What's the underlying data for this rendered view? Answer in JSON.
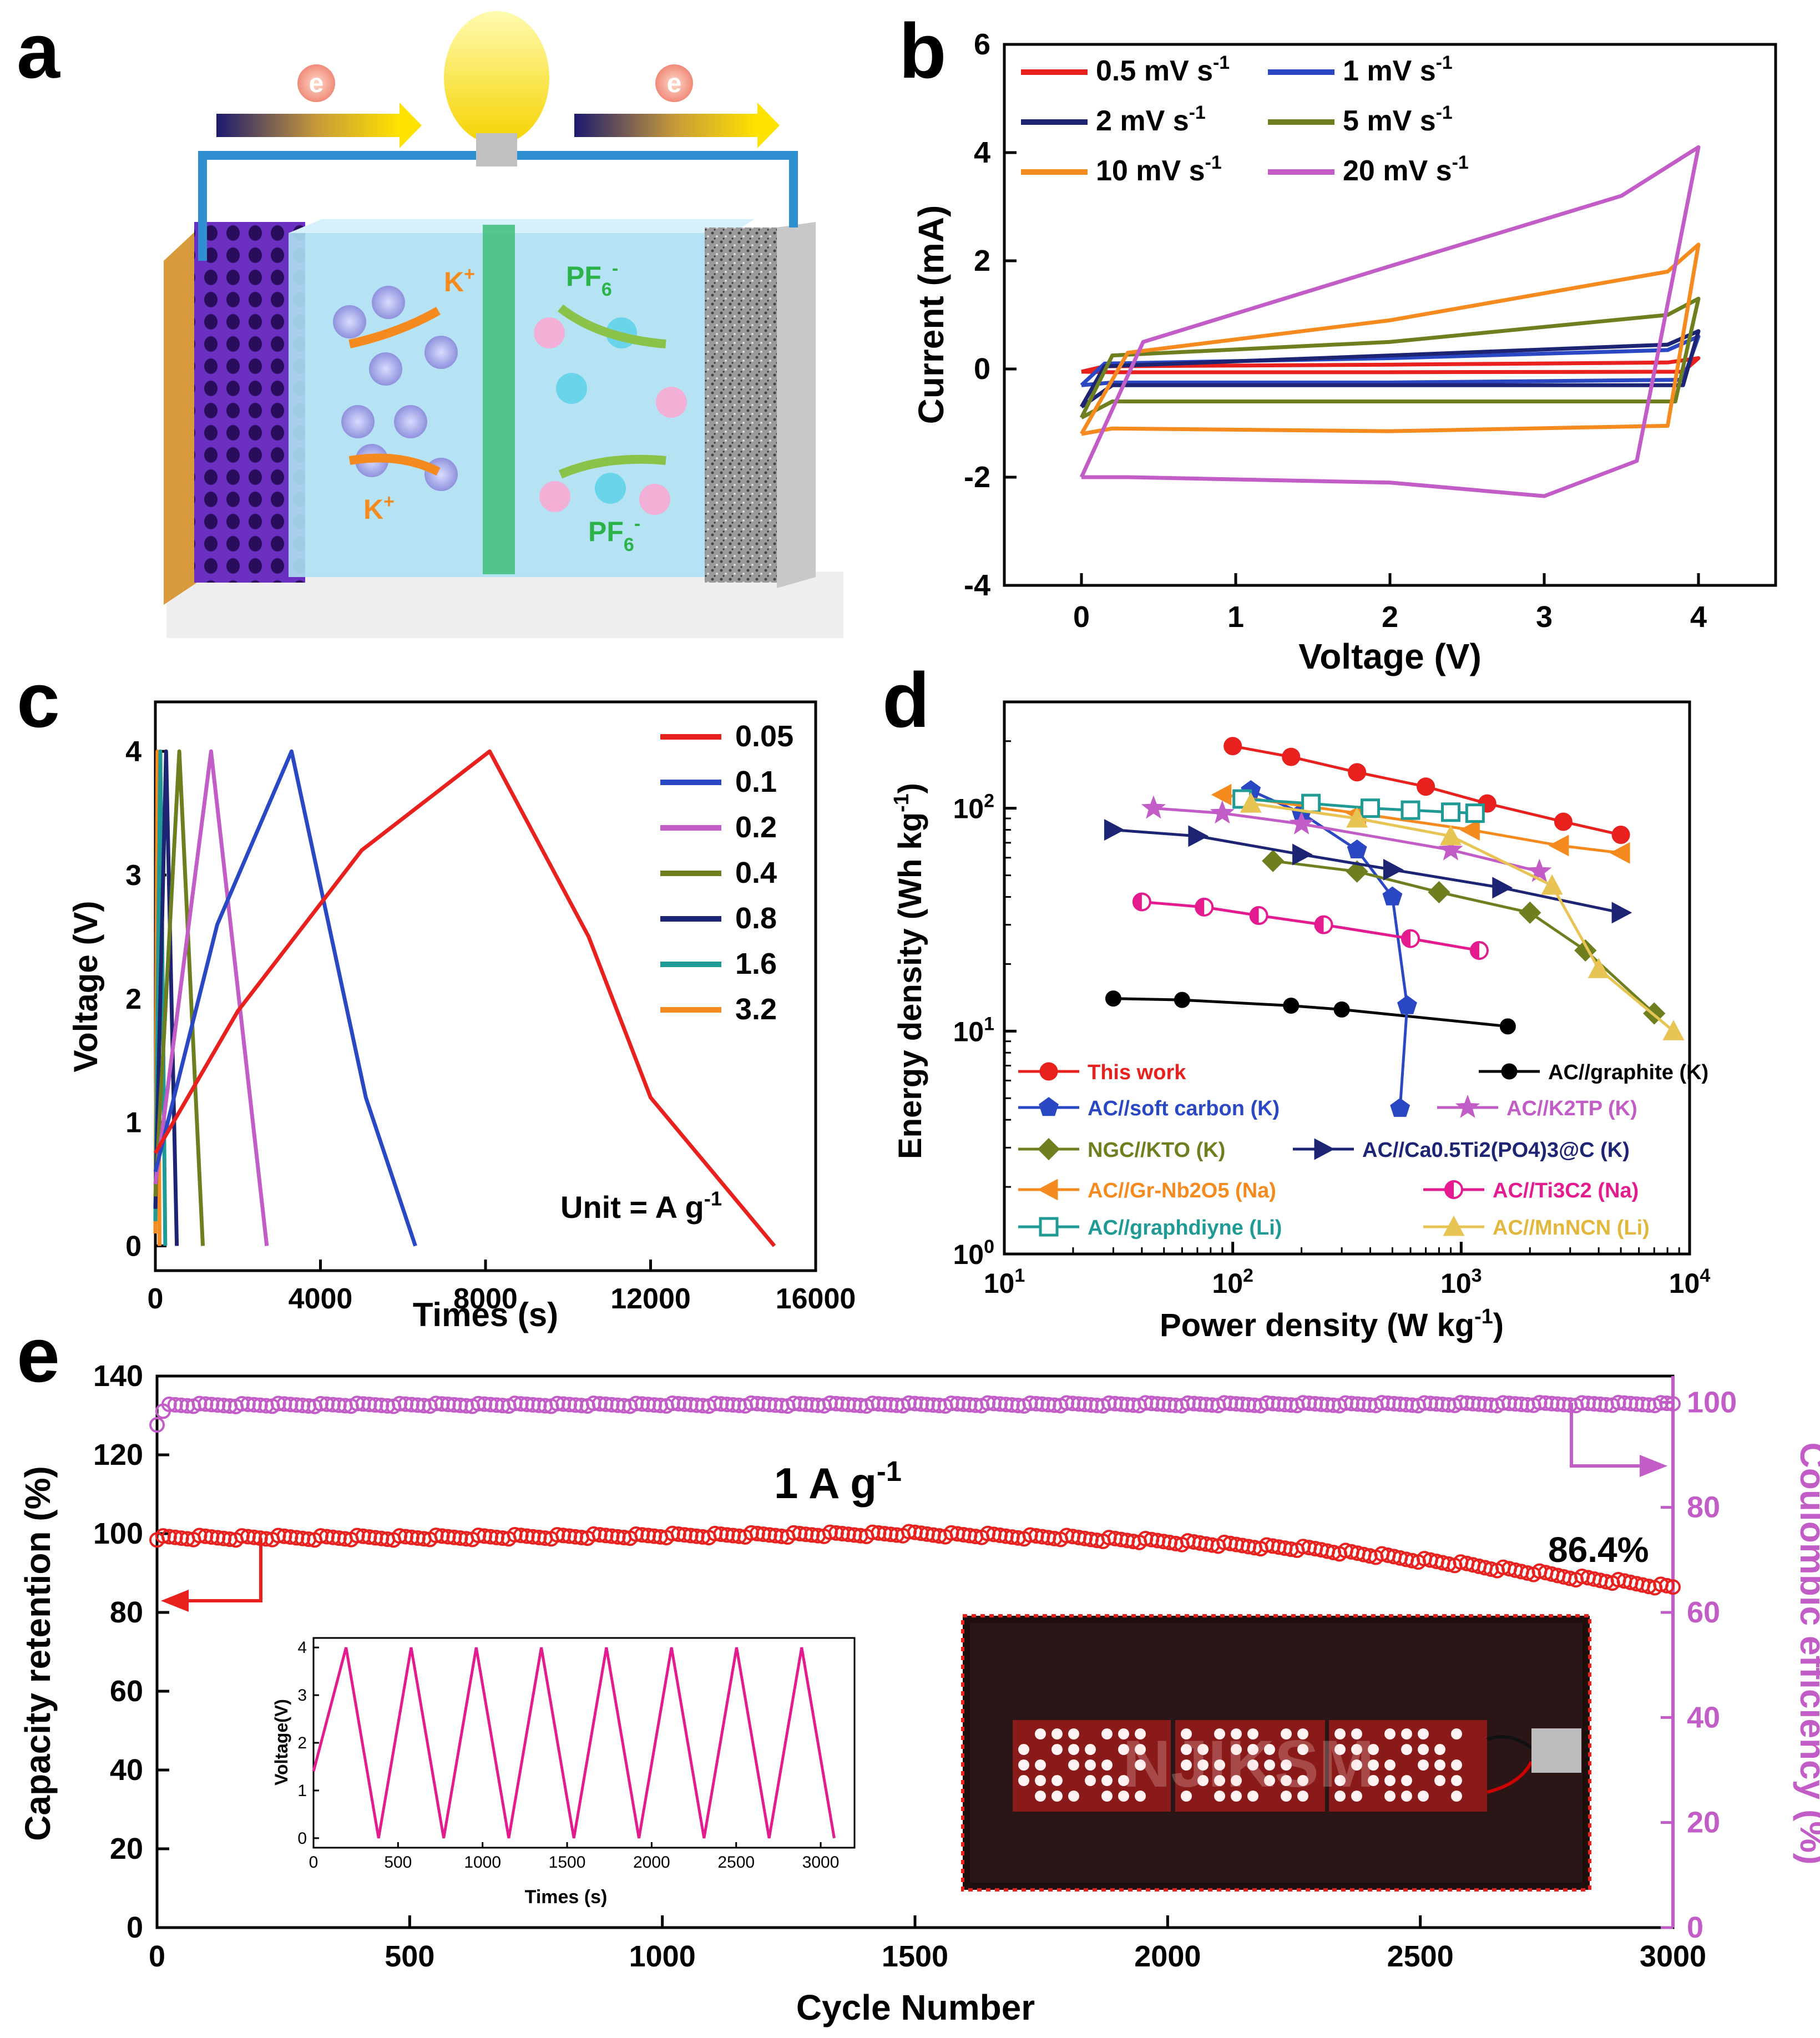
{
  "panels": {
    "a": "a",
    "b": "b",
    "c": "c",
    "d": "d",
    "e": "e"
  },
  "schematic": {
    "electron": "e",
    "cation": "K",
    "cation_sup": "+",
    "anion": "PF",
    "anion_sub": "6",
    "anion_sup": "-"
  },
  "chart_data": [
    {
      "id": "b",
      "type": "line",
      "xlabel": "Voltage (V)",
      "ylabel": "Current (mA)",
      "xlim": [
        -0.5,
        4.5
      ],
      "ylim": [
        -4,
        6
      ],
      "xticks": [
        0,
        1,
        2,
        3,
        4
      ],
      "yticks": [
        -4,
        -2,
        0,
        2,
        4,
        6
      ],
      "legend": [
        "0.5 mV s-1",
        "1 mV s-1",
        "2 mV s-1",
        "5 mV s-1",
        "10 mV s-1",
        "20 mV s-1"
      ],
      "series": [
        {
          "name": "0.5 mV s-1",
          "color": "#e8211e",
          "upper": [
            [
              0,
              -0.05
            ],
            [
              0.15,
              0.05
            ],
            [
              2,
              0.08
            ],
            [
              3.8,
              0.12
            ],
            [
              4,
              0.2
            ]
          ],
          "lower": [
            [
              4,
              0.2
            ],
            [
              3.9,
              -0.05
            ],
            [
              2,
              -0.06
            ],
            [
              0.2,
              -0.06
            ],
            [
              0,
              -0.05
            ]
          ]
        },
        {
          "name": "1 mV s-1",
          "color": "#2a47c4",
          "upper": [
            [
              0,
              -0.3
            ],
            [
              0.15,
              0.1
            ],
            [
              2,
              0.2
            ],
            [
              3.8,
              0.35
            ],
            [
              4,
              0.6
            ]
          ],
          "lower": [
            [
              4,
              0.6
            ],
            [
              3.9,
              -0.2
            ],
            [
              2,
              -0.25
            ],
            [
              0.2,
              -0.25
            ],
            [
              0,
              -0.3
            ]
          ]
        },
        {
          "name": "2 mV s-1",
          "color": "#1d2473",
          "upper": [
            [
              0,
              -0.7
            ],
            [
              0.15,
              0.05
            ],
            [
              2,
              0.25
            ],
            [
              3.8,
              0.45
            ],
            [
              4,
              0.7
            ]
          ],
          "lower": [
            [
              4,
              0.7
            ],
            [
              3.9,
              -0.3
            ],
            [
              2,
              -0.3
            ],
            [
              0.2,
              -0.3
            ],
            [
              0,
              -0.7
            ]
          ]
        },
        {
          "name": "5 mV s-1",
          "color": "#6d7f1f",
          "upper": [
            [
              0,
              -0.9
            ],
            [
              0.2,
              0.25
            ],
            [
              2,
              0.5
            ],
            [
              3.8,
              1
            ],
            [
              4,
              1.3
            ]
          ],
          "lower": [
            [
              4,
              1.3
            ],
            [
              3.85,
              -0.6
            ],
            [
              2,
              -0.6
            ],
            [
              0.2,
              -0.6
            ],
            [
              0,
              -0.9
            ]
          ]
        },
        {
          "name": "10 mV s-1",
          "color": "#f58a1f",
          "upper": [
            [
              0,
              -1.2
            ],
            [
              0.3,
              0.3
            ],
            [
              2,
              0.9
            ],
            [
              3.8,
              1.8
            ],
            [
              4,
              2.3
            ]
          ],
          "lower": [
            [
              4,
              2.3
            ],
            [
              3.8,
              -1.05
            ],
            [
              2,
              -1.15
            ],
            [
              0.2,
              -1.1
            ],
            [
              0,
              -1.2
            ]
          ]
        },
        {
          "name": "20 mV s-1",
          "color": "#c25cc6",
          "upper": [
            [
              0,
              -2
            ],
            [
              0.4,
              0.5
            ],
            [
              2,
              1.9
            ],
            [
              3.5,
              3.2
            ],
            [
              4,
              4.1
            ]
          ],
          "lower": [
            [
              4,
              4.1
            ],
            [
              3.6,
              -1.7
            ],
            [
              3,
              -2.35
            ],
            [
              2,
              -2.1
            ],
            [
              0.3,
              -2
            ],
            [
              0,
              -2
            ]
          ]
        }
      ]
    },
    {
      "id": "c",
      "type": "line",
      "xlabel": "Times (s)",
      "ylabel": "Voltage (V)",
      "xlim": [
        0,
        16000
      ],
      "ylim": [
        -0.2,
        4.4
      ],
      "xticks": [
        0,
        4000,
        8000,
        12000,
        16000
      ],
      "yticks": [
        0,
        1,
        2,
        3,
        4
      ],
      "annotation": "Unit = A g-1",
      "series": [
        {
          "name": "0.05",
          "color": "#e8211e",
          "points": [
            [
              0,
              0.75
            ],
            [
              2000,
              1.9
            ],
            [
              5000,
              3.2
            ],
            [
              8100,
              4
            ],
            [
              10500,
              2.5
            ],
            [
              12000,
              1.2
            ],
            [
              15000,
              0
            ]
          ]
        },
        {
          "name": "0.1",
          "color": "#2a47c4",
          "points": [
            [
              0,
              0.6
            ],
            [
              1500,
              2.6
            ],
            [
              3300,
              4
            ],
            [
              5100,
              1.2
            ],
            [
              6300,
              0
            ]
          ]
        },
        {
          "name": "0.2",
          "color": "#c25cc6",
          "points": [
            [
              0,
              0.5
            ],
            [
              1350,
              4
            ],
            [
              2700,
              0
            ]
          ]
        },
        {
          "name": "0.4",
          "color": "#6d7f1f",
          "points": [
            [
              0,
              0.4
            ],
            [
              580,
              4
            ],
            [
              1150,
              0
            ]
          ]
        },
        {
          "name": "0.8",
          "color": "#1d2473",
          "points": [
            [
              0,
              0.3
            ],
            [
              260,
              4
            ],
            [
              520,
              0
            ]
          ]
        },
        {
          "name": "1.6",
          "color": "#1f9a94",
          "points": [
            [
              0,
              0.2
            ],
            [
              120,
              4
            ],
            [
              240,
              0
            ]
          ]
        },
        {
          "name": "3.2",
          "color": "#f58a1f",
          "points": [
            [
              0,
              0.1
            ],
            [
              50,
              4
            ],
            [
              100,
              0
            ]
          ]
        }
      ]
    },
    {
      "id": "d",
      "type": "scatter",
      "xlabel": "Power density (W kg-1)",
      "ylabel": "Energy density (Wh kg-1)",
      "xscale": "log",
      "yscale": "log",
      "xlim": [
        10,
        10000
      ],
      "ylim": [
        1,
        300
      ],
      "series": [
        {
          "name": "This work",
          "color": "#e8211e",
          "marker": "circle",
          "points": [
            [
              100,
              190
            ],
            [
              180,
              170
            ],
            [
              350,
              145
            ],
            [
              700,
              125
            ],
            [
              1300,
              105
            ],
            [
              2800,
              87
            ],
            [
              5000,
              76
            ]
          ]
        },
        {
          "name": "AC//graphite (K)",
          "color": "#000000",
          "marker": "dot",
          "points": [
            [
              30,
              14
            ],
            [
              60,
              13.8
            ],
            [
              180,
              13
            ],
            [
              300,
              12.5
            ],
            [
              1600,
              10.5
            ]
          ]
        },
        {
          "name": "AC//soft carbon (K)",
          "color": "#2a47c4",
          "marker": "pentagon",
          "points": [
            [
              120,
              120
            ],
            [
              200,
              95
            ],
            [
              350,
              65
            ],
            [
              500,
              40
            ],
            [
              580,
              13
            ],
            [
              540,
              4.5
            ]
          ]
        },
        {
          "name": "AC//K2TP (K)",
          "color": "#c25cc6",
          "marker": "star",
          "points": [
            [
              45,
              100
            ],
            [
              90,
              95
            ],
            [
              200,
              85
            ],
            [
              900,
              65
            ],
            [
              2200,
              52
            ]
          ]
        },
        {
          "name": "NGC//KTO (K)",
          "color": "#6d7f1f",
          "marker": "diamond",
          "points": [
            [
              150,
              58
            ],
            [
              350,
              52
            ],
            [
              800,
              42
            ],
            [
              2000,
              34
            ],
            [
              3500,
              23
            ],
            [
              7000,
              12
            ]
          ]
        },
        {
          "name": "AC//Ca0.5Ti2(PO4)3@C (K)",
          "color": "#1d2473",
          "marker": "tri-right",
          "points": [
            [
              30,
              80
            ],
            [
              70,
              75
            ],
            [
              200,
              62
            ],
            [
              500,
              53
            ],
            [
              1500,
              44
            ],
            [
              5000,
              34
            ]
          ]
        },
        {
          "name": "AC//Gr-Nb2O5 (Na)",
          "color": "#f58a1f",
          "marker": "tri-left",
          "points": [
            [
              90,
              115
            ],
            [
              350,
              95
            ],
            [
              1100,
              80
            ],
            [
              2700,
              68
            ],
            [
              5000,
              63
            ]
          ]
        },
        {
          "name": "AC//Ti3C2 (Na)",
          "color": "#e41b8f",
          "marker": "half-circle",
          "points": [
            [
              40,
              38
            ],
            [
              75,
              36
            ],
            [
              130,
              33
            ],
            [
              250,
              30
            ],
            [
              600,
              26
            ],
            [
              1200,
              23
            ]
          ]
        },
        {
          "name": "AC//graphdiyne (Li)",
          "color": "#1f9a94",
          "marker": "square",
          "points": [
            [
              110,
              110
            ],
            [
              220,
              105
            ],
            [
              400,
              100
            ],
            [
              600,
              98
            ],
            [
              900,
              96
            ],
            [
              1150,
              95
            ]
          ]
        },
        {
          "name": "AC//MnNCN (Li)",
          "color": "#e7c453",
          "marker": "triangle",
          "points": [
            [
              120,
              105
            ],
            [
              350,
              90
            ],
            [
              900,
              75
            ],
            [
              2500,
              45
            ],
            [
              4000,
              19
            ],
            [
              8500,
              10
            ]
          ]
        }
      ],
      "legend_labels": {
        "this_work": "This work",
        "graphite": "AC//graphite (K)",
        "soft_carbon": "AC//soft carbon (K)",
        "k2tp": "AC//K2TP (K)",
        "ngc_kto": "NGC//KTO (K)",
        "ca_ti": "AC//Ca0.5Ti2(PO4)3@C (K)",
        "gr_nb": "AC//Gr-Nb2O5 (Na)",
        "ti3c2": "AC//Ti3C2 (Na)",
        "graphdiyne": "AC//graphdiyne (Li)",
        "mnncn": "AC//MnNCN (Li)"
      }
    },
    {
      "id": "e",
      "type": "scatter",
      "xlabel": "Cycle Number",
      "ylabel": "Capacity retention (%)",
      "y2label": "Coulombic efficiency (%)",
      "xlim": [
        0,
        3000
      ],
      "ylim": [
        0,
        140
      ],
      "y2lim": [
        0,
        105
      ],
      "xticks": [
        0,
        500,
        1000,
        1500,
        2000,
        2500,
        3000
      ],
      "yticks": [
        0,
        20,
        40,
        60,
        80,
        100,
        120,
        140
      ],
      "y2ticks": [
        0,
        20,
        40,
        60,
        80,
        100
      ],
      "rate_label": "1 A g-1",
      "final_retention": "86.4%",
      "series": [
        {
          "name": "Capacity retention",
          "color": "#e8211e",
          "points": [
            [
              0,
              99
            ],
            [
              500,
              99
            ],
            [
              1000,
              99.5
            ],
            [
              1500,
              100
            ],
            [
              1800,
              99
            ],
            [
              2000,
              98
            ],
            [
              2300,
              96
            ],
            [
              2600,
              92
            ],
            [
              2800,
              89
            ],
            [
              3000,
              86.4
            ]
          ]
        },
        {
          "name": "Coulombic efficiency",
          "color": "#c25cc6",
          "points": [
            [
              0,
              96
            ],
            [
              20,
              99.5
            ],
            [
              3000,
              99.7
            ]
          ]
        }
      ],
      "inset": {
        "xlabel": "Times (s)",
        "ylabel": "Voltage(V)",
        "xlim": [
          0,
          3200
        ],
        "ylim": [
          -0.2,
          4.2
        ],
        "xticks": [
          0,
          500,
          1000,
          1500,
          2000,
          2500,
          3000
        ],
        "yticks": [
          0,
          1,
          2,
          3,
          4
        ],
        "color": "#e41b8f",
        "cycles": 8,
        "period": 385,
        "vmin": 0,
        "vmax": 4
      },
      "photo_text": "NJIKSM"
    }
  ]
}
